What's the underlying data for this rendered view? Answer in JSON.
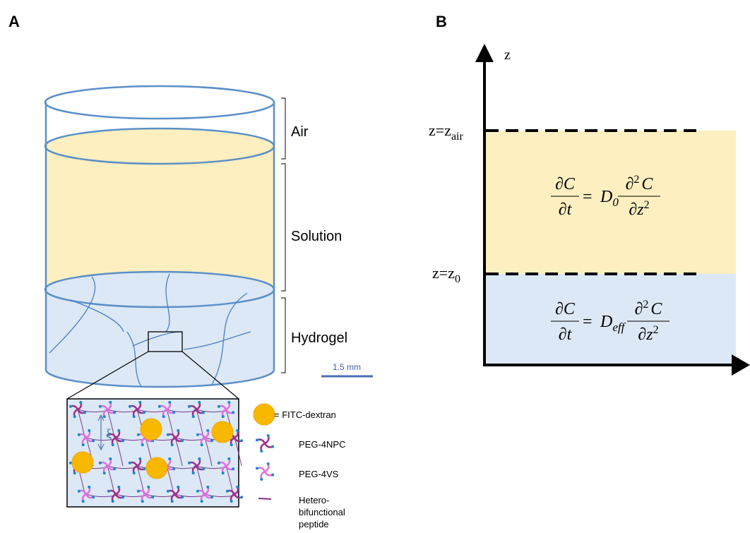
{
  "panel_a": {
    "label": "A",
    "layers": [
      "Air",
      "Solution",
      "Hydrogel"
    ],
    "scale_bar": "1.5 mm",
    "mesh_size": "ξ",
    "legend": [
      "= FITC-dextran",
      "PEG-4NPC",
      "PEG-4VS"
    ],
    "peptide_label": [
      "Hetero-",
      "bifunctional",
      "peptide"
    ]
  },
  "panel_b": {
    "label": "B",
    "axis_label": "z",
    "levels": [
      {
        "prefix": "z=z",
        "subscript": "air"
      },
      {
        "prefix": "z=z",
        "subscript": "0"
      }
    ],
    "equations": [
      {
        "lhs_num": "∂C",
        "lhs_den": "∂t",
        "equals": "=",
        "coef": "D",
        "coef_sub": "0",
        "rhs_num": "∂",
        "rhs_num_sup": "2",
        "rhs_num_end": "C",
        "rhs_den": "∂z",
        "rhs_den_sup": "2"
      },
      {
        "lhs_num": "∂C",
        "lhs_den": "∂t",
        "equals": "=",
        "coef": "D",
        "coef_sub": "eff",
        "rhs_num": "∂",
        "rhs_num_sup": "2",
        "rhs_num_end": "C",
        "rhs_den": "∂z",
        "rhs_den_sup": "2"
      }
    ]
  }
}
